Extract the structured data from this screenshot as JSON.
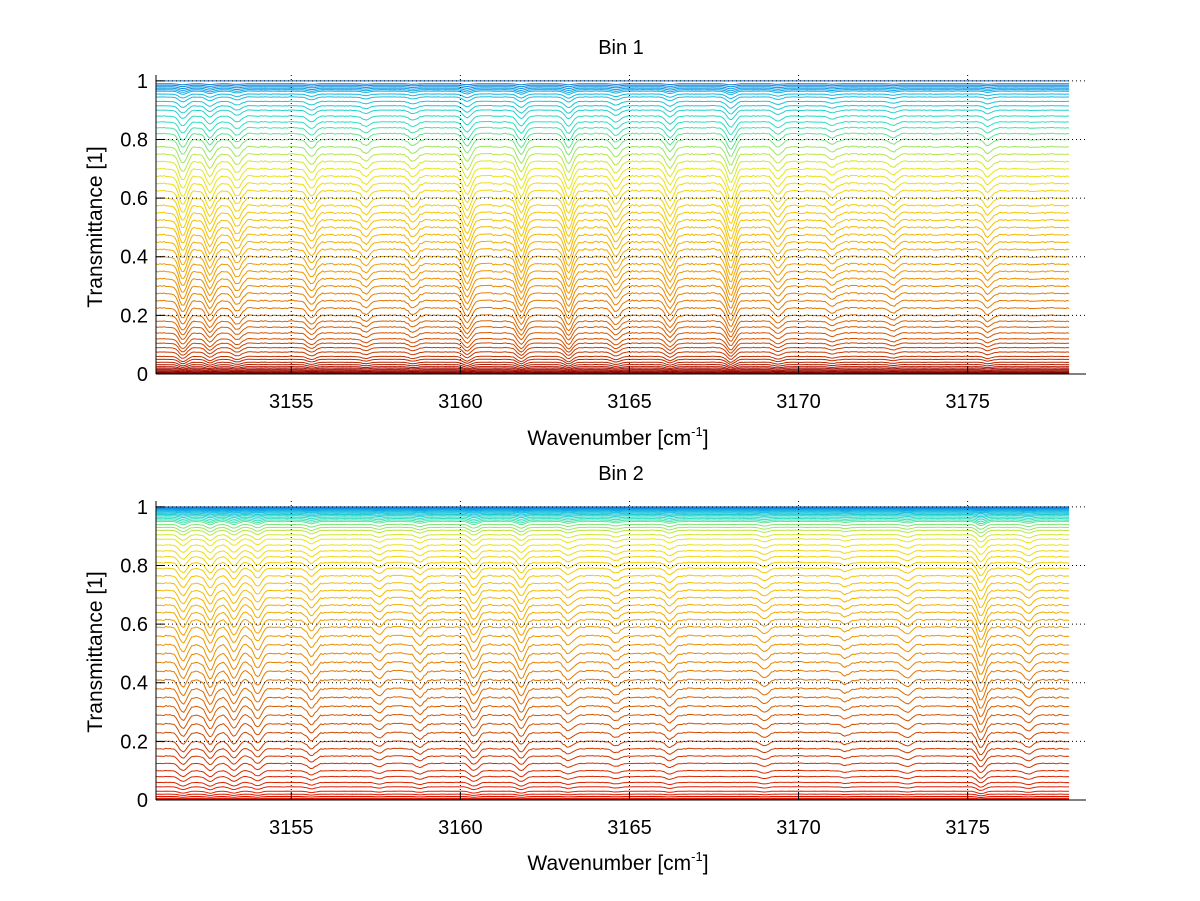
{
  "chart_data": [
    {
      "type": "line",
      "title": "Bin 1",
      "xlabel": "Wavenumber [cm",
      "xlabel_sup": "-1",
      "xlabel_end": "]",
      "ylabel": "Transmittance [1]",
      "xlim": [
        3151,
        3178.5
      ],
      "ylim": [
        0,
        1.02
      ],
      "xticks": [
        3155,
        3160,
        3165,
        3170,
        3175
      ],
      "yticks": [
        0,
        0.2,
        0.4,
        0.6,
        0.8,
        1
      ],
      "ytick_labels": [
        "0",
        "0.2",
        "0.4",
        "0.6",
        "0.8",
        "1"
      ],
      "grid": true,
      "grid_style": "dotted",
      "x_range": [
        3151,
        3178
      ],
      "series_count": 60,
      "baseline_transmittance": [
        1.0,
        0.99,
        0.985,
        0.98,
        0.975,
        0.97,
        0.965,
        0.955,
        0.945,
        0.93,
        0.915,
        0.9,
        0.88,
        0.86,
        0.84,
        0.82,
        0.8,
        0.775,
        0.75,
        0.725,
        0.7,
        0.675,
        0.65,
        0.625,
        0.6,
        0.575,
        0.55,
        0.525,
        0.5,
        0.475,
        0.45,
        0.425,
        0.4,
        0.375,
        0.35,
        0.325,
        0.3,
        0.275,
        0.25,
        0.225,
        0.2,
        0.18,
        0.16,
        0.14,
        0.12,
        0.105,
        0.09,
        0.075,
        0.06,
        0.05,
        0.04,
        0.032,
        0.025,
        0.02,
        0.015,
        0.011,
        0.008,
        0.005,
        0.003,
        0.001
      ],
      "absorption_lines": [
        {
          "x": 3151.8,
          "depth": 0.5
        },
        {
          "x": 3152.6,
          "depth": 0.4
        },
        {
          "x": 3153.4,
          "depth": 0.3
        },
        {
          "x": 3155.6,
          "depth": 0.3
        },
        {
          "x": 3157.2,
          "depth": 0.2
        },
        {
          "x": 3158.6,
          "depth": 0.2
        },
        {
          "x": 3160.2,
          "depth": 0.45
        },
        {
          "x": 3161.8,
          "depth": 0.5
        },
        {
          "x": 3163.2,
          "depth": 0.5
        },
        {
          "x": 3164.6,
          "depth": 0.3
        },
        {
          "x": 3166.2,
          "depth": 0.4
        },
        {
          "x": 3168.0,
          "depth": 0.55
        },
        {
          "x": 3169.4,
          "depth": 0.25
        },
        {
          "x": 3171.0,
          "depth": 0.15
        },
        {
          "x": 3172.8,
          "depth": 0.15
        },
        {
          "x": 3175.6,
          "depth": 0.2
        }
      ],
      "colormap": [
        "#1170d8",
        "#12b5e6",
        "#2fe0c0",
        "#e8e820",
        "#f5c400",
        "#f0a000",
        "#e07000",
        "#cc4000",
        "#aa1000",
        "#7a0000"
      ]
    },
    {
      "type": "line",
      "title": "Bin 2",
      "xlabel": "Wavenumber [cm",
      "xlabel_sup": "-1",
      "xlabel_end": "]",
      "ylabel": "Transmittance [1]",
      "xlim": [
        3151,
        3178.5
      ],
      "ylim": [
        0,
        1.02
      ],
      "xticks": [
        3155,
        3160,
        3165,
        3170,
        3175
      ],
      "yticks": [
        0,
        0.2,
        0.4,
        0.6,
        0.8,
        1
      ],
      "ytick_labels": [
        "0",
        "0.2",
        "0.4",
        "0.6",
        "0.8",
        "1"
      ],
      "grid": true,
      "grid_style": "dotted",
      "x_range": [
        3151,
        3178
      ],
      "series_count": 60,
      "baseline_transmittance": [
        1.0,
        0.998,
        0.996,
        0.994,
        0.992,
        0.99,
        0.988,
        0.985,
        0.982,
        0.978,
        0.974,
        0.97,
        0.965,
        0.96,
        0.955,
        0.95,
        0.94,
        0.93,
        0.92,
        0.905,
        0.89,
        0.87,
        0.85,
        0.83,
        0.81,
        0.79,
        0.765,
        0.74,
        0.715,
        0.69,
        0.665,
        0.64,
        0.615,
        0.59,
        0.56,
        0.53,
        0.5,
        0.47,
        0.44,
        0.41,
        0.38,
        0.35,
        0.32,
        0.29,
        0.26,
        0.23,
        0.2,
        0.175,
        0.15,
        0.125,
        0.1,
        0.08,
        0.06,
        0.045,
        0.03,
        0.02,
        0.012,
        0.006,
        0.003,
        0.001
      ],
      "absorption_lines": [
        {
          "x": 3151.8,
          "depth": 0.35
        },
        {
          "x": 3152.6,
          "depth": 0.35
        },
        {
          "x": 3153.3,
          "depth": 0.35
        },
        {
          "x": 3154.0,
          "depth": 0.3
        },
        {
          "x": 3155.6,
          "depth": 0.25
        },
        {
          "x": 3157.6,
          "depth": 0.15
        },
        {
          "x": 3158.8,
          "depth": 0.2
        },
        {
          "x": 3160.4,
          "depth": 0.35
        },
        {
          "x": 3161.8,
          "depth": 0.35
        },
        {
          "x": 3163.2,
          "depth": 0.2
        },
        {
          "x": 3164.6,
          "depth": 0.15
        },
        {
          "x": 3166.2,
          "depth": 0.2
        },
        {
          "x": 3169.0,
          "depth": 0.15
        },
        {
          "x": 3171.4,
          "depth": 0.1
        },
        {
          "x": 3173.2,
          "depth": 0.15
        },
        {
          "x": 3175.4,
          "depth": 0.45
        },
        {
          "x": 3176.8,
          "depth": 0.2
        }
      ],
      "colormap": [
        "#1170d8",
        "#12b5e6",
        "#2fe0c0",
        "#e8e820",
        "#f5c400",
        "#f0a000",
        "#e07000",
        "#cc4000",
        "#e02000",
        "#d81000"
      ]
    }
  ]
}
